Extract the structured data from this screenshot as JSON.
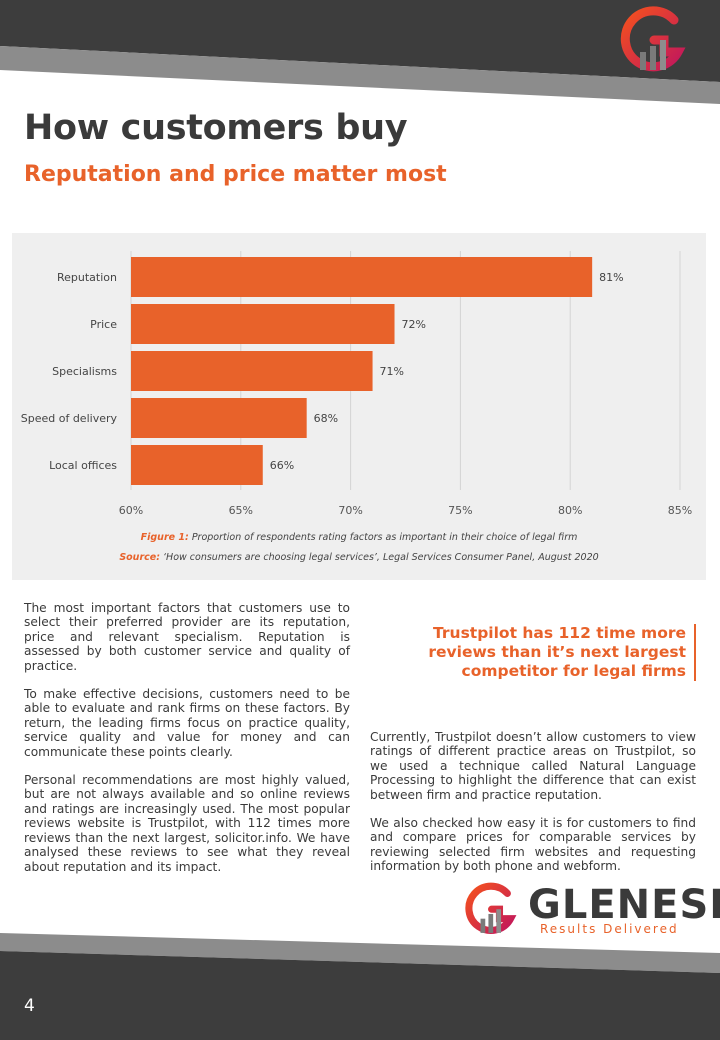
{
  "page": {
    "title": "How customers buy",
    "subtitle": "Reputation and price matter most",
    "page_number": "4"
  },
  "chart_data": {
    "type": "bar",
    "orientation": "horizontal",
    "categories": [
      "Reputation",
      "Price",
      "Specialisms",
      "Speed of delivery",
      "Local offices"
    ],
    "values": [
      81,
      72,
      71,
      68,
      66
    ],
    "value_labels": [
      "81%",
      "72%",
      "71%",
      "68%",
      "66%"
    ],
    "xlim": [
      60,
      85
    ],
    "x_ticks": [
      "60%",
      "65%",
      "70%",
      "75%",
      "80%",
      "85%"
    ],
    "grid": true,
    "bar_color": "#e8622a"
  },
  "caption": {
    "figure_label": "Figure 1:",
    "figure_text": " Proportion of respondents rating factors as important in their choice of legal firm",
    "source_label": "Source:",
    "source_text": " ‘How consumers are choosing legal services’, Legal Services Consumer Panel, August 2020"
  },
  "body_left": [
    "The most important factors that customers use to select their preferred provider are its reputation, price and relevant specialism.  Reputation is assessed by both customer service and quality of practice.",
    "To make effective decisions, customers need to be able to evaluate and rank firms on these factors.  By return, the leading firms focus on practice quality, service quality and value for money and can communicate these points clearly.",
    "Personal recommendations are most highly valued, but are not always available and so online reviews and ratings are increasingly used. The most popular reviews website is Trustpilot, with 112 times more reviews than the next largest, solicitor.info. We have analysed these reviews to see what they reveal about reputation and its impact."
  ],
  "pull_quote": "Trustpilot has 112 time more reviews than it’s next largest competitor for legal firms",
  "body_right": [
    "Currently, Trustpilot doesn’t allow customers to view ratings of different practice areas on Trustpilot, so we used a technique called Natural Language Processing to highlight the difference that can exist between firm and practice reputation.",
    "We also checked how easy it is for customers to find and compare prices for comparable services by reviewing selected firm websites and requesting information by both phone and webform."
  ],
  "brand": {
    "name": "GLENESK",
    "tagline": "Results Delivered"
  },
  "colors": {
    "accent": "#e8622a",
    "dark": "#3d3d3d",
    "band_grey": "#8c8c8c",
    "logo_magenta": "#c2185b"
  }
}
